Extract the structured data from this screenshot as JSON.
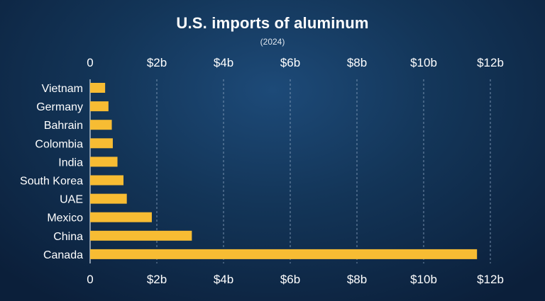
{
  "chart_data": {
    "type": "bar",
    "orientation": "horizontal",
    "title": "U.S. imports of aluminum",
    "subtitle": "(2024)",
    "categories": [
      "Vietnam",
      "Germany",
      "Bahrain",
      "Colombia",
      "India",
      "South Korea",
      "UAE",
      "Mexico",
      "China",
      "Canada"
    ],
    "values": [
      0.45,
      0.55,
      0.65,
      0.68,
      0.82,
      1.0,
      1.1,
      1.85,
      3.05,
      11.6
    ],
    "value_unit": "billion USD",
    "xlim": [
      0,
      12
    ],
    "x_ticks": [
      0,
      2,
      4,
      6,
      8,
      10,
      12
    ],
    "x_tick_labels": [
      "0",
      "$2b",
      "$4b",
      "$6b",
      "$8b",
      "$10b",
      "$12b"
    ],
    "grid": "vertical dashed",
    "x_axis_labels_position": "top and bottom",
    "bar_color": "#f7bc33",
    "grid_color": "#8ea6c2"
  }
}
